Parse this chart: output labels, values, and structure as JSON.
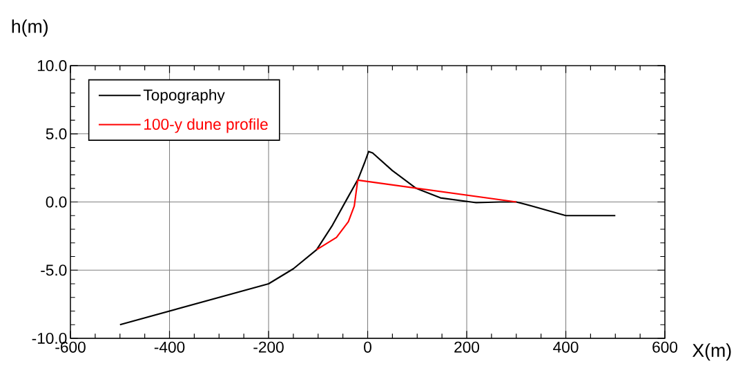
{
  "chart_data": {
    "type": "line",
    "xlabel": "X(m)",
    "ylabel": "h(m)",
    "xlim": [
      -600,
      600
    ],
    "ylim": [
      -10,
      10
    ],
    "xticks": [
      -600,
      -400,
      -200,
      0,
      200,
      400,
      600
    ],
    "yticks": [
      {
        "value": -10,
        "label": "-10.0"
      },
      {
        "value": -5,
        "label": "-5.0"
      },
      {
        "value": 0,
        "label": "0.0"
      },
      {
        "value": 5,
        "label": "5.0"
      },
      {
        "value": 10,
        "label": "10.0"
      }
    ],
    "grid": true,
    "legend": "top left",
    "line_style": "solid",
    "marker": "none",
    "series": [
      {
        "name": "Topography",
        "color": "#000000",
        "x": [
          -500,
          -200,
          -150,
          -103,
          -71,
          -39,
          -19,
          -6,
          2,
          10,
          50,
          98,
          147,
          219,
          267,
          300,
          332,
          400,
          500
        ],
        "values": [
          -9.0,
          -6.0,
          -4.9,
          -3.5,
          -1.7,
          0.4,
          1.7,
          2.9,
          3.7,
          3.6,
          2.3,
          1.0,
          0.3,
          -0.05,
          0.0,
          0.0,
          -0.3,
          -1.0,
          -1.0
        ]
      },
      {
        "name": "100-y dune profile",
        "color": "#ff0000",
        "x": [
          -103,
          -63,
          -39,
          -27,
          -20,
          300
        ],
        "values": [
          -3.5,
          -2.6,
          -1.45,
          -0.3,
          1.6,
          0.0
        ]
      }
    ]
  }
}
